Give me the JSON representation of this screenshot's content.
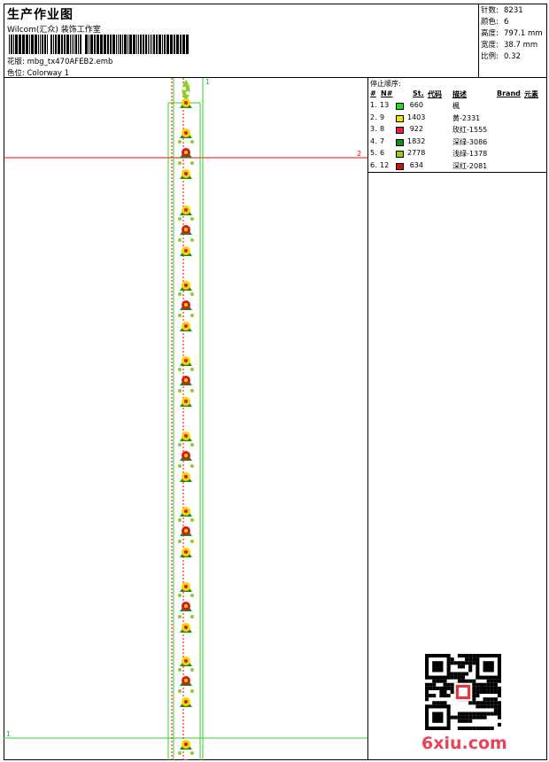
{
  "header": {
    "title": "生产作业图",
    "company": "Wilcom(汇众) 装饰工作室",
    "design_label": "花版:",
    "design_file": "mbg_tx470AFEB2.emb",
    "colorway_label": "色位:",
    "colorway": "Colorway 1"
  },
  "info": [
    {
      "label": "针数:",
      "value": "8231"
    },
    {
      "label": "颜色:",
      "value": "6"
    },
    {
      "label": "高度:",
      "value": "797.1 mm"
    },
    {
      "label": "宽度:",
      "value": "38.7 mm"
    },
    {
      "label": "比例:",
      "value": "0.32"
    }
  ],
  "canvas": {
    "marker_top": "1",
    "marker_right": "2",
    "marker_bottom": "1",
    "colors": {
      "guide": "#33cc33",
      "crosshair": "#ff0000",
      "leaf": "#8fcc2a",
      "flower_yellow": "#f2d600",
      "flower_red": "#d61a1a",
      "leaf_dark": "#1d8a1d"
    }
  },
  "stop_sequence": {
    "title": "停止顺序:",
    "headers": {
      "num": "#",
      "needle": "N#",
      "st": "St.",
      "code": "代码",
      "desc": "描述",
      "brand": "Brand",
      "element": "元素"
    },
    "rows": [
      {
        "idx": "1.",
        "needle": "13",
        "code": "660",
        "desc": "楓",
        "color": "#22dd22"
      },
      {
        "idx": "2.",
        "needle": "9",
        "code": "1403",
        "desc": "黄-2331",
        "color": "#f2e600"
      },
      {
        "idx": "3.",
        "needle": "8",
        "code": "922",
        "desc": "玫红-1555",
        "color": "#e81e4a"
      },
      {
        "idx": "4.",
        "needle": "7",
        "code": "1832",
        "desc": "深绿-3086",
        "color": "#1a8a1a"
      },
      {
        "idx": "5.",
        "needle": "6",
        "code": "2778",
        "desc": "浅绿-1378",
        "color": "#9ccc14"
      },
      {
        "idx": "6.",
        "needle": "12",
        "code": "634",
        "desc": "深红-2081",
        "color": "#cc1111"
      }
    ]
  },
  "watermark": "6xiu.com"
}
